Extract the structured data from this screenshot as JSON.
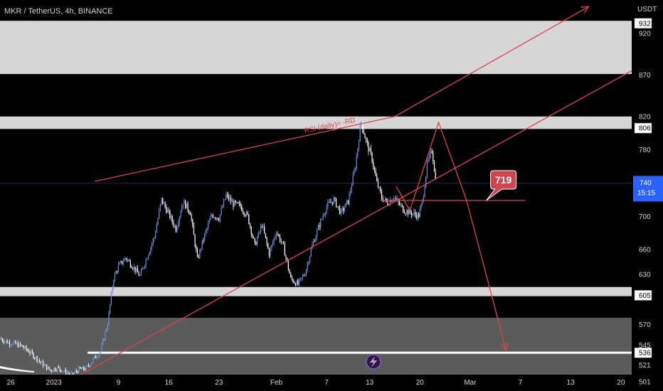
{
  "chart_data": {
    "type": "candlestick",
    "title": "MKR / TetherUS, 4h, BINANCE",
    "y_unit": "USDT",
    "ylim": [
      490,
      960
    ],
    "y_ticks": [
      501,
      521,
      545,
      570,
      630,
      660,
      700,
      780,
      820,
      870,
      920
    ],
    "y_tick_labels": [
      "501",
      "521",
      "545",
      "570",
      "630",
      "660",
      "700",
      "780",
      "820",
      "870",
      "920"
    ],
    "x_ticks": [
      -6,
      0,
      9,
      16,
      23,
      31,
      38,
      44,
      51,
      58,
      65,
      72,
      79
    ],
    "x_tick_labels": [
      "26",
      "2023",
      "9",
      "16",
      "23",
      "Feb",
      "7",
      "13",
      "20",
      "Mar",
      "7",
      "13",
      "20"
    ],
    "x_range": [
      -7.5,
      80.5
    ],
    "last_price": {
      "value": 740,
      "label": "740",
      "countdown": "15:15"
    },
    "price_boxes": [
      {
        "value": 932,
        "label": "932"
      },
      {
        "value": 806,
        "label": "806"
      },
      {
        "value": 605,
        "label": "605"
      },
      {
        "value": 536,
        "label": "536"
      }
    ],
    "zones": [
      {
        "from": 871,
        "to": 935,
        "color": "#d6d6d6"
      },
      {
        "from": 805,
        "to": 820,
        "color": "#d6d6d6"
      },
      {
        "from": 604,
        "to": 615,
        "color": "#d6d6d6"
      },
      {
        "from": 490,
        "to": 578,
        "color": "#5b5b5b"
      }
    ],
    "horizontal_lines": [
      {
        "value": 536,
        "from_x": 4.7,
        "to_x": 80.5,
        "color": "#ffffff"
      }
    ],
    "callout": {
      "label": "719",
      "color": "#e0424b"
    },
    "annotation": {
      "text": "RSI (daily)= -RD"
    },
    "drawn_lines": [
      {
        "name": "upper-channel-line",
        "points": [
          [
            5.7,
            742
          ],
          [
            47.5,
            820
          ]
        ]
      },
      {
        "name": "channel-extension-arrow",
        "points": [
          [
            47.5,
            820
          ],
          [
            74.5,
            952
          ]
        ],
        "arrow": true
      },
      {
        "name": "lower-trendline",
        "points": [
          [
            3.2,
            507
          ],
          [
            80.5,
            875
          ]
        ]
      },
      {
        "name": "level-719-line",
        "points": [
          [
            45.5,
            719
          ],
          [
            65.7,
            719
          ]
        ]
      },
      {
        "name": "projection-path",
        "points": [
          [
            47.7,
            736
          ],
          [
            49.6,
            707
          ],
          [
            53.6,
            813
          ],
          [
            57.5,
            719
          ]
        ]
      },
      {
        "name": "breakdown-arrow",
        "points": [
          [
            57.5,
            719
          ],
          [
            63,
            539
          ]
        ],
        "arrow": true
      }
    ],
    "price_path": [
      [
        -7.5,
        553
      ],
      [
        -6.5,
        549
      ],
      [
        -5.5,
        547
      ],
      [
        -4.5,
        544
      ],
      [
        -3.5,
        538
      ],
      [
        -2.5,
        530
      ],
      [
        -1.5,
        522
      ],
      [
        -0.5,
        515
      ],
      [
        0.5,
        518
      ],
      [
        1.5,
        513
      ],
      [
        2.5,
        509
      ],
      [
        3.5,
        516
      ],
      [
        4.5,
        517
      ],
      [
        5.5,
        528
      ],
      [
        6.5,
        538
      ],
      [
        7.5,
        571
      ],
      [
        8.3,
        625
      ],
      [
        9,
        640
      ],
      [
        10,
        650
      ],
      [
        11,
        640
      ],
      [
        12,
        628
      ],
      [
        13,
        652
      ],
      [
        14,
        675
      ],
      [
        15,
        720
      ],
      [
        16,
        703
      ],
      [
        17,
        685
      ],
      [
        18,
        718
      ],
      [
        19,
        705
      ],
      [
        20,
        648
      ],
      [
        21,
        677
      ],
      [
        22,
        702
      ],
      [
        23,
        698
      ],
      [
        24,
        725
      ],
      [
        25,
        715
      ],
      [
        26,
        712
      ],
      [
        27,
        700
      ],
      [
        28,
        665
      ],
      [
        29,
        690
      ],
      [
        30,
        655
      ],
      [
        31,
        682
      ],
      [
        32,
        663
      ],
      [
        33,
        625
      ],
      [
        34,
        618
      ],
      [
        35,
        632
      ],
      [
        36,
        665
      ],
      [
        37,
        690
      ],
      [
        38,
        712
      ],
      [
        39,
        720
      ],
      [
        40,
        704
      ],
      [
        41,
        718
      ],
      [
        42,
        760
      ],
      [
        42.8,
        815
      ],
      [
        43.5,
        790
      ],
      [
        44.3,
        770
      ],
      [
        45,
        740
      ],
      [
        45.7,
        722
      ],
      [
        46.5,
        716
      ],
      [
        47.3,
        724
      ],
      [
        48,
        716
      ],
      [
        48.7,
        708
      ],
      [
        49.5,
        705
      ],
      [
        50.2,
        703
      ],
      [
        50.8,
        700
      ],
      [
        51.4,
        720
      ],
      [
        52,
        762
      ],
      [
        52.7,
        780
      ],
      [
        53.2,
        742
      ]
    ]
  }
}
